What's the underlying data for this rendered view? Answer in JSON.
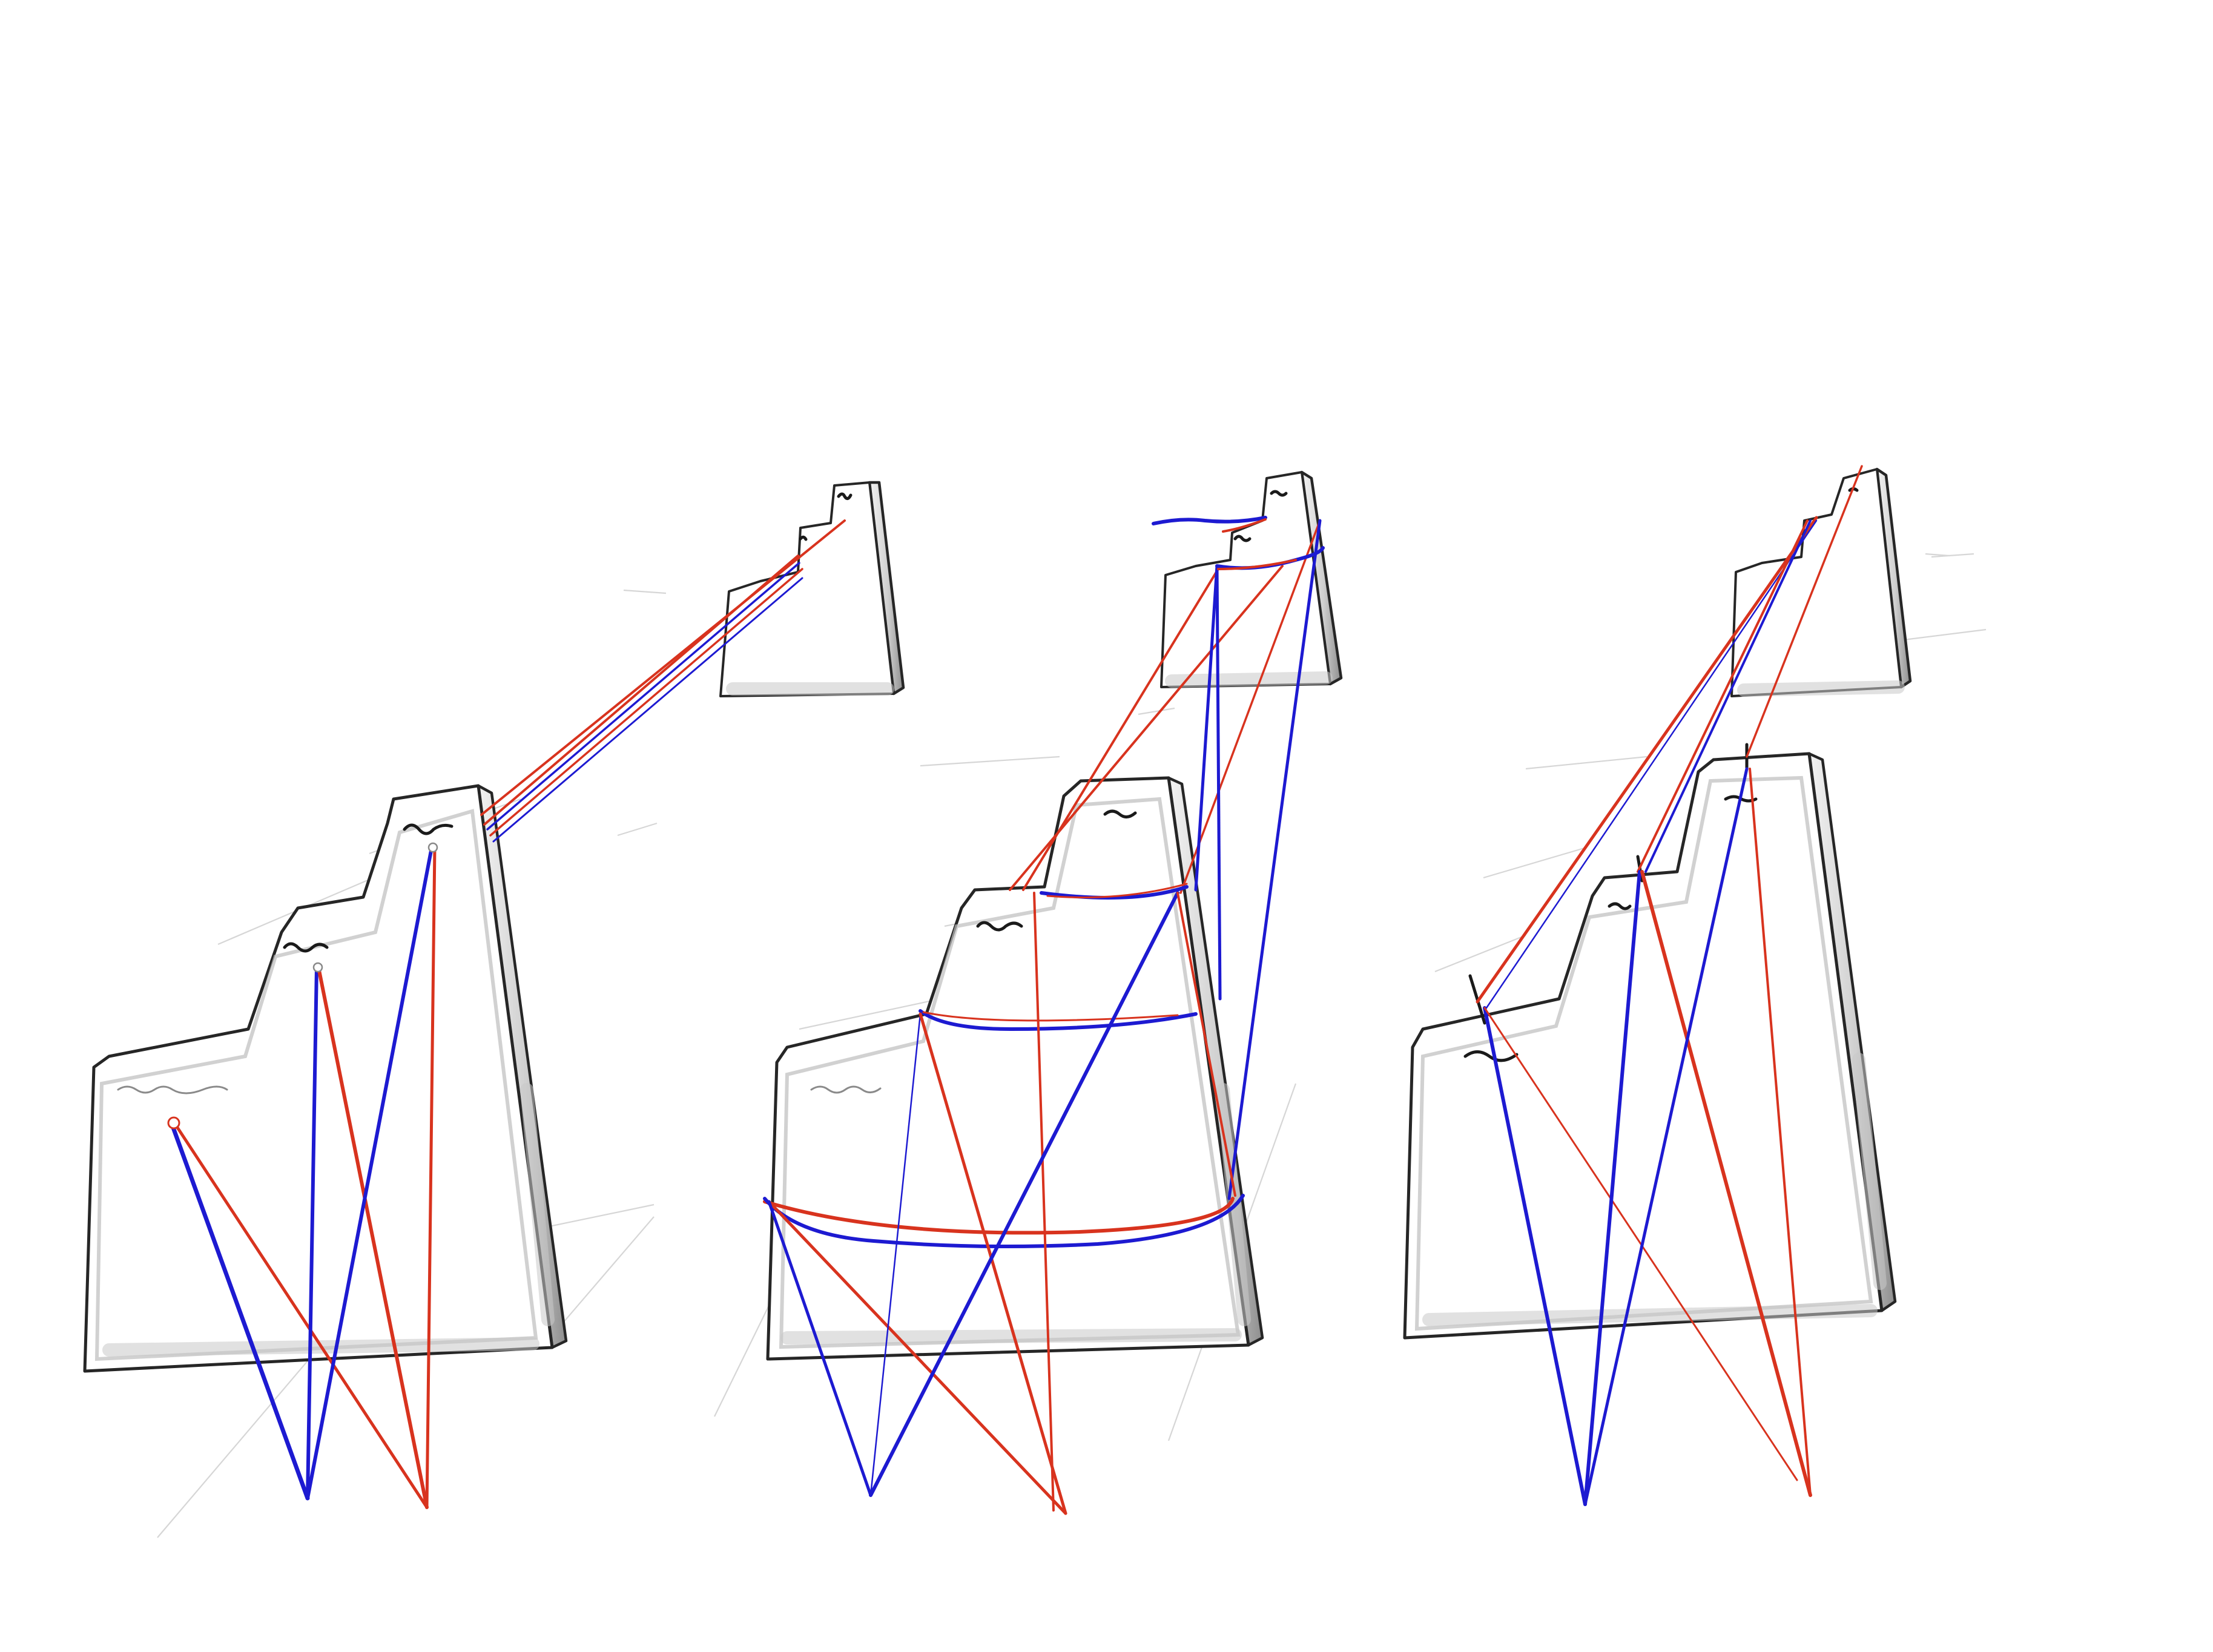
{
  "sketch": {
    "panels": [
      {
        "name": "single-point-rays",
        "variant": "left"
      },
      {
        "name": "rings-and-rays",
        "variant": "middle"
      },
      {
        "name": "crossing-rays",
        "variant": "right"
      }
    ],
    "colors": {
      "red_ray": "#d8331e",
      "blue_ray": "#1d1ad1",
      "outline": "#262626",
      "guide": "#d6d6d6",
      "background": "#ffffff"
    },
    "icons": [
      "squiggle-mark",
      "small-circle-marker",
      "tick-mark"
    ]
  }
}
